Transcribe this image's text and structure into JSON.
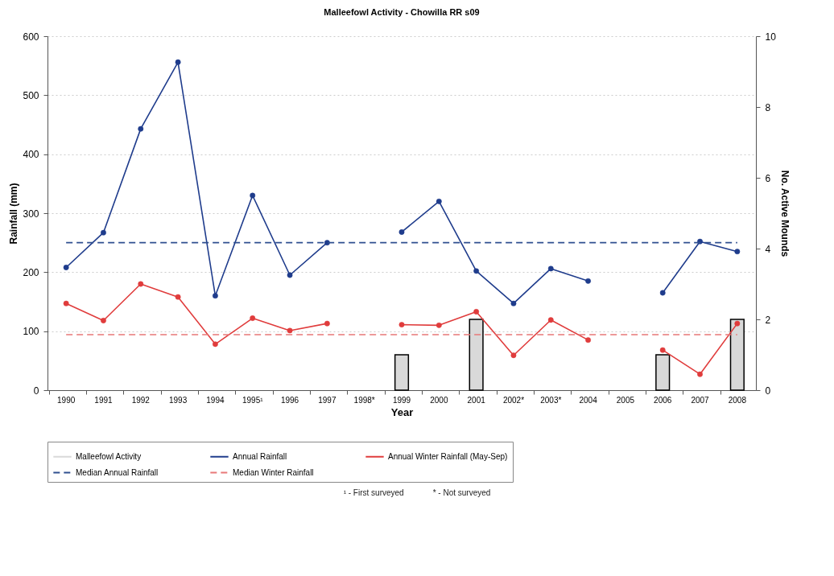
{
  "chart_data": {
    "type": "line",
    "title": "Malleefowl Activity - Chowilla RR s09",
    "xlabel": "Year",
    "ylabel": "Rainfall (mm)",
    "y2label": "No. Active Mounds",
    "categories": [
      "1990",
      "1991",
      "1992",
      "1993",
      "1994",
      "1995¹",
      "1996",
      "1997",
      "1998*",
      "1999",
      "2000",
      "2001",
      "2002*",
      "2003*",
      "2004",
      "2005",
      "2006",
      "2007",
      "2008"
    ],
    "series": [
      {
        "name": "Malleefowl Activity",
        "type": "bar",
        "axis": "y2",
        "color": "#d9d9d9",
        "values": [
          null,
          null,
          null,
          null,
          null,
          null,
          null,
          null,
          null,
          1,
          null,
          2,
          null,
          null,
          null,
          null,
          1,
          null,
          2
        ]
      },
      {
        "name": "Annual Rainfall",
        "color": "#1f3c8c",
        "marker": "circle",
        "line_style": "solid",
        "values": [
          208,
          267,
          443,
          556,
          160,
          330,
          195,
          250,
          null,
          268,
          320,
          202,
          147,
          206,
          185,
          null,
          165,
          252,
          235
        ]
      },
      {
        "name": "Annual Winter Rainfall (May-Sep)",
        "color": "#e03c3c",
        "marker": "circle",
        "line_style": "solid",
        "values": [
          147,
          118,
          180,
          158,
          78,
          122,
          101,
          113,
          null,
          111,
          110,
          133,
          59,
          119,
          85,
          null,
          68,
          27,
          113
        ]
      },
      {
        "name": "Median Annual Rainfall",
        "color": "#2f4f8f",
        "marker": "none",
        "line_style": "dashed",
        "values": [
          250,
          250,
          250,
          250,
          250,
          250,
          250,
          250,
          250,
          250,
          250,
          250,
          250,
          250,
          250,
          250,
          250,
          250,
          250
        ]
      },
      {
        "name": "Median Winter Rainfall",
        "color": "#e87878",
        "marker": "none",
        "line_style": "dashed",
        "values": [
          94,
          94,
          94,
          94,
          94,
          94,
          94,
          94,
          94,
          94,
          94,
          94,
          94,
          94,
          94,
          94,
          94,
          94,
          94
        ]
      }
    ],
    "ylim": [
      0,
      600
    ],
    "yticks": [
      0,
      100,
      200,
      300,
      400,
      500,
      600
    ],
    "y2lim": [
      0,
      10
    ],
    "y2ticks": [
      0,
      2,
      4,
      6,
      8,
      10
    ],
    "grid": "y",
    "legend": "bottom",
    "annotations": [
      "¹ - First surveyed",
      "* - Not surveyed"
    ]
  }
}
